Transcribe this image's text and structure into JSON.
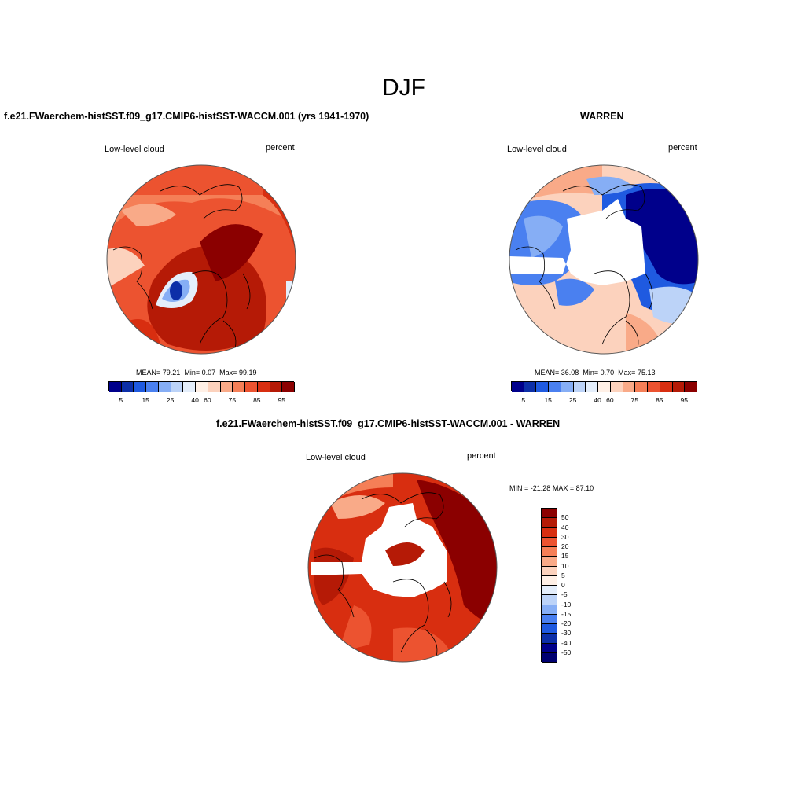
{
  "figure": {
    "title": "DJF"
  },
  "panels": [
    {
      "title": "f.e21.FWaerchem-histSST.f09_g17.CMIP6-histSST-WACCM.001 (yrs 1941-1970)",
      "variable": "Low-level cloud",
      "units": "percent",
      "stats": {
        "mean": "79.21",
        "min": "0.07",
        "max": "99.19"
      }
    },
    {
      "title": "WARREN",
      "variable": "Low-level cloud",
      "units": "percent",
      "stats": {
        "mean": "36.08",
        "min": "0.70",
        "max": "75.13"
      }
    },
    {
      "title": "f.e21.FWaerchem-histSST.f09_g17.CMIP6-histSST-WACCM.001 - WARREN",
      "variable": "Low-level cloud",
      "units": "percent",
      "stats": {
        "min": "-21.28",
        "max": "87.10"
      }
    }
  ],
  "labels": {
    "mean": "MEAN=",
    "min": "Min=",
    "max": "Max=",
    "diff_min": "MIN =",
    "diff_max": "MAX ="
  },
  "colorbar_abs": {
    "tick_labels": [
      "5",
      "15",
      "25",
      "40",
      "60",
      "75",
      "85",
      "95"
    ],
    "colors": [
      "#00008b",
      "#0c2fa8",
      "#1f5ae0",
      "#4a80f0",
      "#86aef5",
      "#bcd3f8",
      "#e4eefb",
      "#fff0e6",
      "#fcd2bd",
      "#f9aa88",
      "#f57f57",
      "#ec5330",
      "#d82e10",
      "#b51a06",
      "#8b0000"
    ]
  },
  "colorbar_diff": {
    "tick_labels": [
      "50",
      "40",
      "30",
      "20",
      "15",
      "10",
      "5",
      "0",
      "-5",
      "-10",
      "-15",
      "-20",
      "-30",
      "-40",
      "-50"
    ],
    "colors": [
      "#8b0000",
      "#b51a06",
      "#d82e10",
      "#ec5330",
      "#f57f57",
      "#f9aa88",
      "#fcd2bd",
      "#fff0e6",
      "#e4eefb",
      "#bcd3f8",
      "#86aef5",
      "#4a80f0",
      "#1f5ae0",
      "#0c2fa8",
      "#00008b",
      "#000070"
    ]
  }
}
